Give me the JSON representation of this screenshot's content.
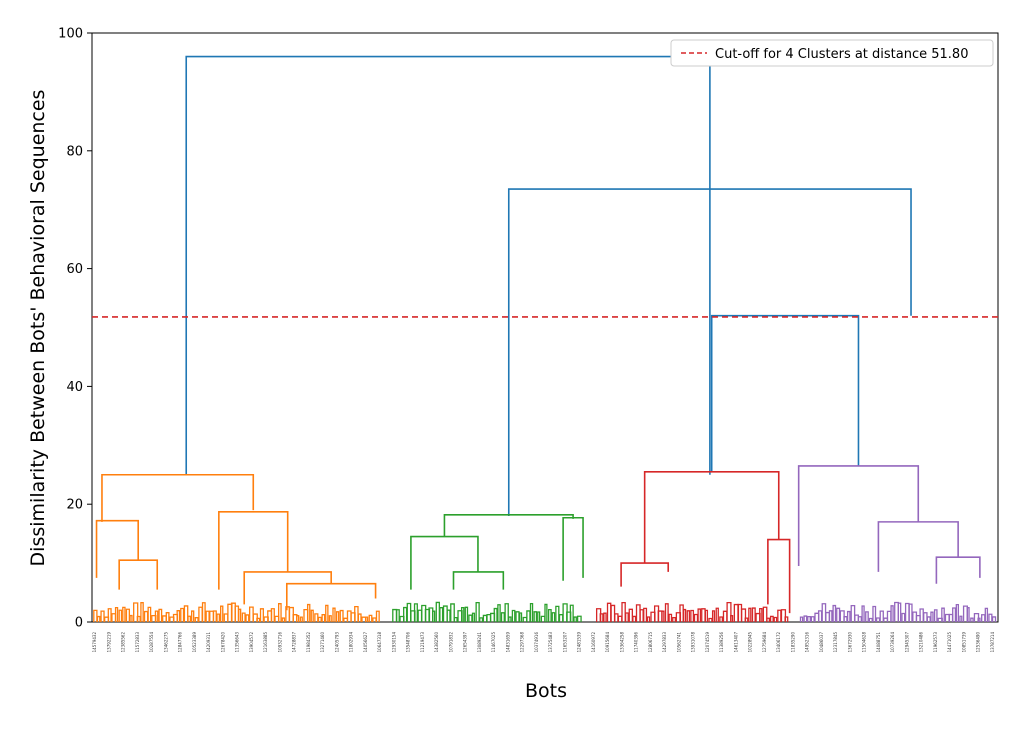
{
  "chart_data": {
    "type": "dendrogram",
    "xlabel": "Bots",
    "ylabel": "Dissimilarity Between Bots' Behavioral Sequences",
    "ylim": [
      0,
      100
    ],
    "yticks": [
      0,
      20,
      40,
      60,
      80,
      100
    ],
    "xlim": [
      0,
      1000
    ],
    "cutoff": {
      "distance": 51.8,
      "label": "Cut-off for 4 Clusters at distance 51.80",
      "color": "#d62728"
    },
    "legend_position": "top-right",
    "colors": {
      "orange": "#ff7f0e",
      "green": "#2ca02c",
      "red": "#d62728",
      "purple": "#9467bd",
      "link": "#1f77b4"
    },
    "links": [
      {
        "x1": 104,
        "x2": 682,
        "y1": 25,
        "y2": 25,
        "h": 96,
        "color": "link"
      },
      {
        "x1": 460,
        "x2": 904,
        "y1": 18,
        "y2": 52,
        "h": 73.5,
        "color": "link"
      },
      {
        "x1": 684,
        "x2": 846,
        "y1": 25.5,
        "y2": 26.5,
        "h": 52,
        "color": "link"
      },
      {
        "x1": 11,
        "x2": 178,
        "y1": 17,
        "y2": 19,
        "h": 25,
        "color": "orange"
      },
      {
        "x1": 5,
        "x2": 51,
        "y1": 7.5,
        "y2": 10.5,
        "h": 17.2,
        "color": "orange"
      },
      {
        "x1": 30,
        "x2": 72,
        "y1": 5.5,
        "y2": 5.5,
        "h": 10.5,
        "color": "orange"
      },
      {
        "x1": 140,
        "x2": 216,
        "y1": 5.5,
        "y2": 8.5,
        "h": 18.7,
        "color": "orange"
      },
      {
        "x1": 168,
        "x2": 264,
        "y1": 3,
        "y2": 6.5,
        "h": 8.5,
        "color": "orange"
      },
      {
        "x1": 215,
        "x2": 313,
        "y1": 2,
        "y2": 4,
        "h": 6.5,
        "color": "orange"
      },
      {
        "x1": 389,
        "x2": 531,
        "y1": 14.5,
        "y2": 17.5,
        "h": 18.2,
        "color": "green"
      },
      {
        "x1": 352,
        "x2": 426,
        "y1": 5.5,
        "y2": 8.5,
        "h": 14.5,
        "color": "green"
      },
      {
        "x1": 399,
        "x2": 454,
        "y1": 5.5,
        "y2": 5.5,
        "h": 8.5,
        "color": "green"
      },
      {
        "x1": 520,
        "x2": 542,
        "y1": 7,
        "y2": 7.5,
        "h": 17.7,
        "color": "green"
      },
      {
        "x1": 610,
        "x2": 758,
        "y1": 10,
        "y2": 14,
        "h": 25.5,
        "color": "red"
      },
      {
        "x1": 584,
        "x2": 636,
        "y1": 6,
        "y2": 8.5,
        "h": 10,
        "color": "red"
      },
      {
        "x1": 746,
        "x2": 770,
        "y1": 3,
        "y2": 1.5,
        "h": 14,
        "color": "red"
      },
      {
        "x1": 780,
        "x2": 912,
        "y1": 9.5,
        "y2": 17,
        "h": 26.5,
        "color": "purple"
      },
      {
        "x1": 868,
        "x2": 956,
        "y1": 8.5,
        "y2": 11,
        "h": 17,
        "color": "purple"
      },
      {
        "x1": 932,
        "x2": 980,
        "y1": 6.5,
        "y2": 7.5,
        "h": 11,
        "color": "purple"
      }
    ],
    "leaf_labels": [
      "14579432",
      "13792219",
      "12385562",
      "11572833",
      "10287554",
      "13462275",
      "12847766",
      "10523389",
      "14209311",
      "12678420",
      "11356643",
      "13904572",
      "12163885",
      "10932716",
      "14728837",
      "11984352",
      "13271460",
      "12405793",
      "11802934",
      "14056627",
      "10647318",
      "12930154",
      "13548706",
      "11219473",
      "14382560",
      "10791832",
      "12654397",
      "13089241",
      "11467025",
      "14831659",
      "12297368",
      "10374916",
      "13725483",
      "11653207",
      "12481539",
      "14160972",
      "10915684",
      "13364258",
      "11740396",
      "12806715",
      "14297833",
      "10562741",
      "13931078",
      "12074519",
      "11389256",
      "14613407",
      "10228945",
      "12759684",
      "13406172",
      "11835290",
      "14952316",
      "10486037",
      "12317845",
      "13672930",
      "11504628",
      "14088751",
      "10739264",
      "12945307",
      "13210486",
      "11962573",
      "14471025",
      "10851739",
      "12536490",
      "13787214"
    ]
  }
}
